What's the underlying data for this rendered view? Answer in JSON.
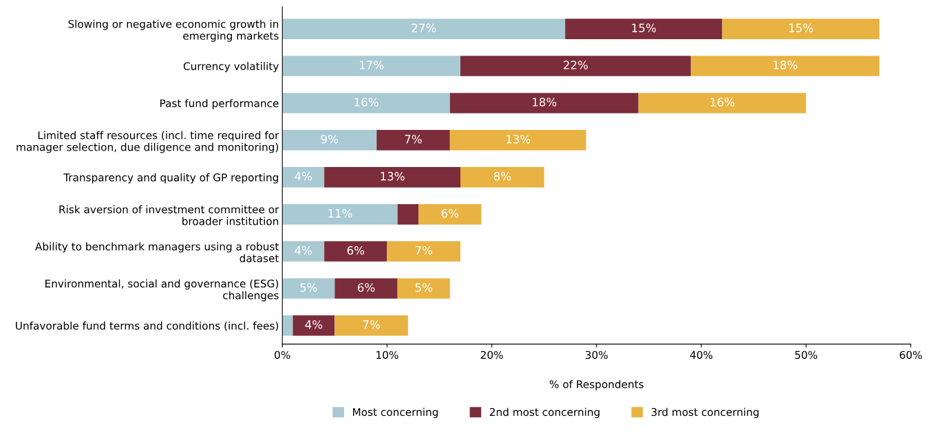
{
  "chart_data": {
    "type": "bar",
    "orientation": "horizontal",
    "stacked": true,
    "xlabel": "% of Respondents",
    "categories": [
      "Slowing or negative economic growth in\nemerging markets",
      "Currency volatility",
      "Past fund performance",
      "Limited staff resources (incl. time required for\nmanager selection, due diligence and monitoring)",
      "Transparency and quality of GP reporting",
      "Risk aversion of investment committee or\nbroader institution",
      "Ability to benchmark managers using a robust\ndataset",
      "Environmental, social and governance (ESG)\nchallenges",
      "Unfavorable fund terms and conditions (incl. fees)"
    ],
    "series": [
      {
        "name": "Most concerning",
        "color": "#a9c9d3",
        "values": [
          27,
          17,
          16,
          9,
          4,
          11,
          4,
          5,
          1
        ],
        "value_labels": [
          "27%",
          "17%",
          "16%",
          "9%",
          "4%",
          "11%",
          "4%",
          "5%",
          null
        ]
      },
      {
        "name": "2nd most concerning",
        "color": "#7b2d3b",
        "values": [
          15,
          22,
          18,
          7,
          13,
          2,
          6,
          6,
          4
        ],
        "value_labels": [
          "15%",
          "22%",
          "18%",
          "7%",
          "13%",
          null,
          "6%",
          "6%",
          "4%"
        ]
      },
      {
        "name": "3rd most concerning",
        "color": "#e8b342",
        "values": [
          15,
          18,
          16,
          13,
          8,
          6,
          7,
          5,
          7
        ],
        "value_labels": [
          "15%",
          "18%",
          "16%",
          "13%",
          "8%",
          "6%",
          "7%",
          "5%",
          "7%"
        ]
      }
    ],
    "xlim": [
      0,
      60
    ],
    "xticks": [
      {
        "value": 0,
        "label": "0%"
      },
      {
        "value": 10,
        "label": "10%"
      },
      {
        "value": 20,
        "label": "20%"
      },
      {
        "value": 30,
        "label": "30%"
      },
      {
        "value": 40,
        "label": "40%"
      },
      {
        "value": 50,
        "label": "50%"
      },
      {
        "value": 60,
        "label": "60%"
      }
    ],
    "grid": false,
    "legend": "bottom"
  }
}
